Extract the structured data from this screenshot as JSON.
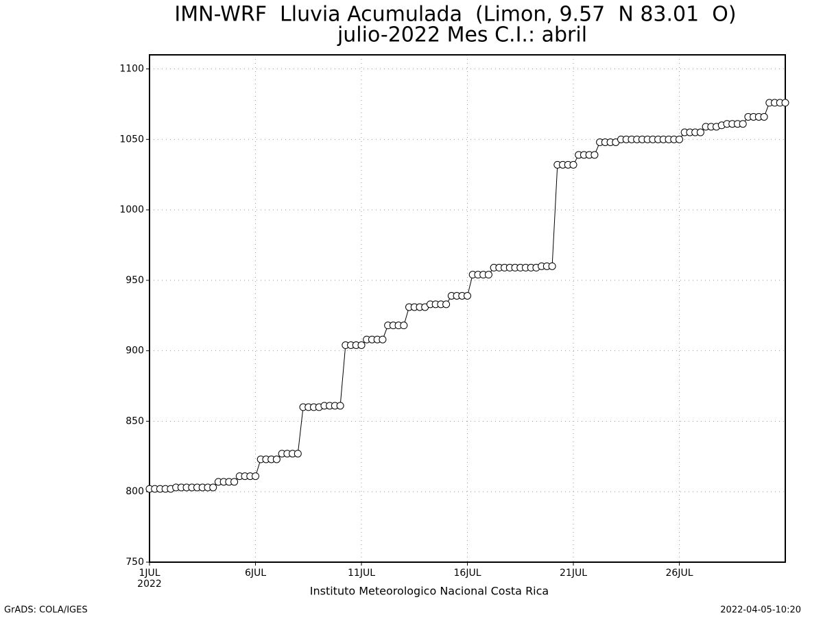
{
  "chart_data": {
    "type": "line",
    "title": "IMN-WRF  Lluvia Acumulada  (Limon, 9.57  N 83.01  O)",
    "subtitle": "julio-2022 Mes C.I.: abril",
    "x_year_label": "2022",
    "footer": "Instituto Meteorologico Nacional Costa Rica",
    "credit": "GrADS: COLA/IGES",
    "timestamp": "2022-04-05-10:20",
    "x": [
      1,
      1.25,
      1.5,
      1.75,
      2,
      2.25,
      2.5,
      2.75,
      3,
      3.25,
      3.5,
      3.75,
      4,
      4.25,
      4.5,
      4.75,
      5,
      5.25,
      5.5,
      5.75,
      6,
      6.25,
      6.5,
      6.75,
      7,
      7.25,
      7.5,
      7.75,
      8,
      8.25,
      8.5,
      8.75,
      9,
      9.25,
      9.5,
      9.75,
      10,
      10.25,
      10.5,
      10.75,
      11,
      11.25,
      11.5,
      11.75,
      12,
      12.25,
      12.5,
      12.75,
      13,
      13.25,
      13.5,
      13.75,
      14,
      14.25,
      14.5,
      14.75,
      15,
      15.25,
      15.5,
      15.75,
      16,
      16.25,
      16.5,
      16.75,
      17,
      17.25,
      17.5,
      17.75,
      18,
      18.25,
      18.5,
      18.75,
      19,
      19.25,
      19.5,
      19.75,
      20,
      20.25,
      20.5,
      20.75,
      21,
      21.25,
      21.5,
      21.75,
      22,
      22.25,
      22.5,
      22.75,
      23,
      23.25,
      23.5,
      23.75,
      24,
      24.25,
      24.5,
      24.75,
      25,
      25.25,
      25.5,
      25.75,
      26,
      26.25,
      26.5,
      26.75,
      27,
      27.25,
      27.5,
      27.75,
      28,
      28.25,
      28.5,
      28.75,
      29,
      29.25,
      29.5,
      29.75,
      30,
      30.25,
      30.5,
      30.75,
      31
    ],
    "values": [
      802,
      802,
      802,
      802,
      802,
      803,
      803,
      803,
      803,
      803,
      803,
      803,
      803,
      807,
      807,
      807,
      807,
      811,
      811,
      811,
      811,
      823,
      823,
      823,
      823,
      827,
      827,
      827,
      827,
      860,
      860,
      860,
      860,
      861,
      861,
      861,
      861,
      904,
      904,
      904,
      904,
      908,
      908,
      908,
      908,
      918,
      918,
      918,
      918,
      931,
      931,
      931,
      931,
      933,
      933,
      933,
      933,
      939,
      939,
      939,
      939,
      954,
      954,
      954,
      954,
      959,
      959,
      959,
      959,
      959,
      959,
      959,
      959,
      959,
      960,
      960,
      960,
      1032,
      1032,
      1032,
      1032,
      1039,
      1039,
      1039,
      1039,
      1048,
      1048,
      1048,
      1048,
      1050,
      1050,
      1050,
      1050,
      1050,
      1050,
      1050,
      1050,
      1050,
      1050,
      1050,
      1050,
      1055,
      1055,
      1055,
      1055,
      1059,
      1059,
      1059,
      1060,
      1061,
      1061,
      1061,
      1061,
      1066,
      1066,
      1066,
      1066,
      1076,
      1076,
      1076,
      1076
    ],
    "color": "#000000",
    "xlim": [
      1,
      31
    ],
    "xticks": [
      {
        "value": 1,
        "label": "1JUL"
      },
      {
        "value": 6,
        "label": "6JUL"
      },
      {
        "value": 11,
        "label": "11JUL"
      },
      {
        "value": 16,
        "label": "16JUL"
      },
      {
        "value": 21,
        "label": "21JUL"
      },
      {
        "value": 26,
        "label": "26JUL"
      }
    ],
    "ylim": [
      750,
      1110
    ],
    "yticks": [
      750,
      800,
      850,
      900,
      950,
      1000,
      1050,
      1100
    ],
    "grid": true
  }
}
